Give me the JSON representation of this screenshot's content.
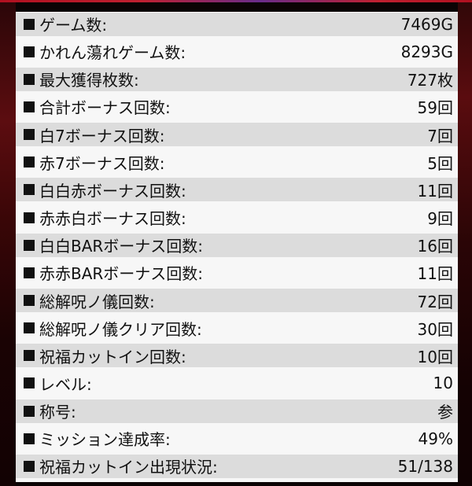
{
  "stats": [
    {
      "label": "ゲーム数:",
      "value": "7469G"
    },
    {
      "label": "かれん蕩れゲーム数:",
      "value": "8293G"
    },
    {
      "label": "最大獲得枚数:",
      "value": "727枚"
    },
    {
      "label": "合計ボーナス回数:",
      "value": "59回"
    },
    {
      "label": "白7ボーナス回数:",
      "value": "7回"
    },
    {
      "label": "赤7ボーナス回数:",
      "value": "5回"
    },
    {
      "label": "白白赤ボーナス回数:",
      "value": "11回"
    },
    {
      "label": "赤赤白ボーナス回数:",
      "value": "9回"
    },
    {
      "label": "白白BARボーナス回数:",
      "value": "16回"
    },
    {
      "label": "赤赤BARボーナス回数:",
      "value": "11回"
    },
    {
      "label": "総解呪ノ儀回数:",
      "value": "72回"
    },
    {
      "label": "総解呪ノ儀クリア回数:",
      "value": "30回"
    },
    {
      "label": "祝福カットイン回数:",
      "value": "10回"
    },
    {
      "label": "レベル:",
      "value": "10"
    },
    {
      "label": "称号:",
      "value": "参"
    },
    {
      "label": "ミッション達成率:",
      "value": "49%"
    },
    {
      "label": "祝福カットイン出現状況:",
      "value": "51/138"
    }
  ],
  "colors": {
    "panel_bg": "#f7f7f7",
    "row_shade": "#dcdcdc",
    "text": "#111111",
    "backdrop": "#5c0d10"
  },
  "icons": {
    "bullet": "black-square-icon"
  }
}
